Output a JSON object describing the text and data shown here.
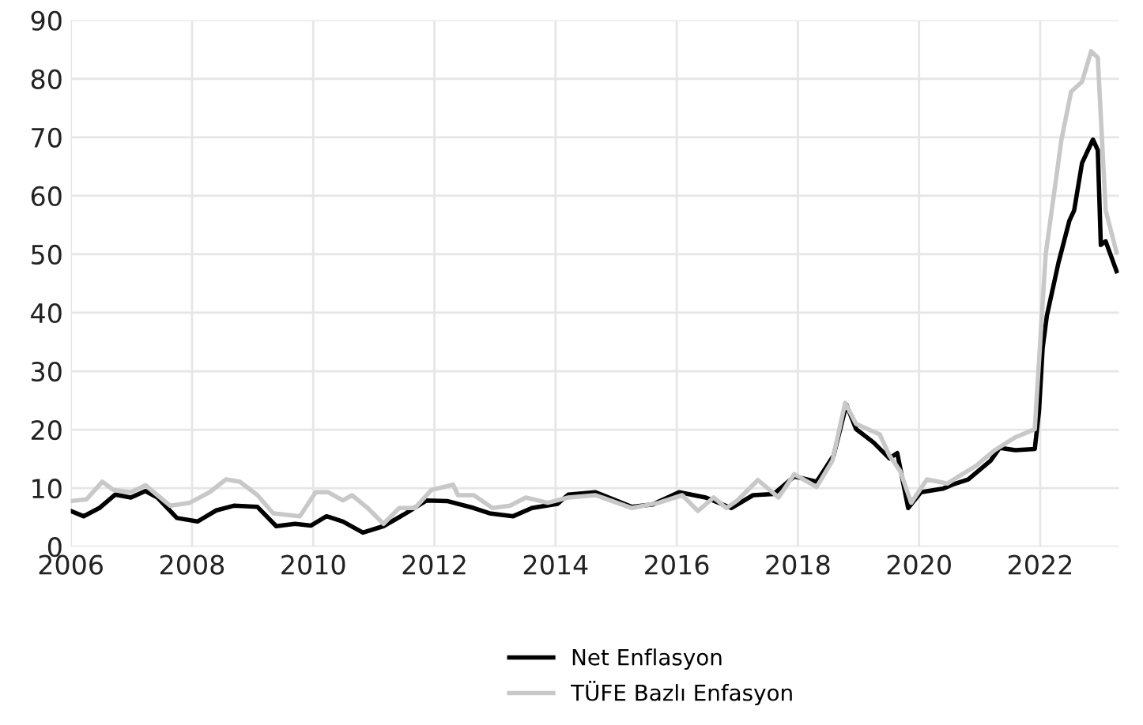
{
  "chart_data": {
    "type": "line",
    "xlim": [
      2006,
      2023.3
    ],
    "ylim": [
      0,
      90
    ],
    "xticks": [
      2006,
      2008,
      2010,
      2012,
      2014,
      2016,
      2018,
      2020,
      2022
    ],
    "yticks": [
      0,
      10,
      20,
      30,
      40,
      50,
      60,
      70,
      80,
      90
    ],
    "grid": true,
    "legend": "bottom",
    "line_style": "solid",
    "marker": "none",
    "series": [
      {
        "name": "Net Enflasyon",
        "color": "#000000",
        "x": [
          2006,
          2006.21,
          2006.47,
          2006.73,
          2006.99,
          2007.23,
          2007.43,
          2007.75,
          2008.09,
          2008.4,
          2008.69,
          2009.08,
          2009.39,
          2009.7,
          2009.96,
          2010.22,
          2010.49,
          2010.82,
          2011.16,
          2011.53,
          2011.87,
          2012.21,
          2012.65,
          2012.91,
          2013.3,
          2013.61,
          2014.03,
          2014.21,
          2014.66,
          2015.26,
          2015.6,
          2016.04,
          2016.48,
          2016.9,
          2017.26,
          2017.6,
          2017.94,
          2018.31,
          2018.59,
          2018.8,
          2018.96,
          2019.25,
          2019.51,
          2019.64,
          2019.82,
          2020.03,
          2020.39,
          2020.55,
          2020.81,
          2021.18,
          2021.33,
          2021.59,
          2021.91,
          2021.98,
          2022.04,
          2022.11,
          2022.3,
          2022.48,
          2022.56,
          2022.69,
          2022.87,
          2022.95,
          2023.0,
          2023.08,
          2023.26
        ],
        "values": [
          6.1,
          5.2,
          6.6,
          8.9,
          8.4,
          9.5,
          8.4,
          4.9,
          4.3,
          6.2,
          7.0,
          6.8,
          3.5,
          3.9,
          3.6,
          5.2,
          4.3,
          2.4,
          3.5,
          5.7,
          7.9,
          7.8,
          6.6,
          5.7,
          5.2,
          6.6,
          7.3,
          8.9,
          9.3,
          6.8,
          7.2,
          9.3,
          8.4,
          6.6,
          8.8,
          9.0,
          12.0,
          11.1,
          15.6,
          24.3,
          20.1,
          17.8,
          15.1,
          16.0,
          6.6,
          9.3,
          9.9,
          10.6,
          11.5,
          14.7,
          16.9,
          16.5,
          16.7,
          23.2,
          34,
          39.5,
          48.5,
          55.7,
          57.5,
          65.6,
          69.6,
          67.8,
          51.6,
          52.2,
          47.1
        ]
      },
      {
        "name": "TÜFE Bazlı Enfasyon",
        "color": "#c8c8c8",
        "x": [
          2006,
          2006.26,
          2006.52,
          2006.7,
          2006.99,
          2007.23,
          2007.43,
          2007.64,
          2007.96,
          2008.29,
          2008.56,
          2008.79,
          2009.08,
          2009.34,
          2009.78,
          2010.04,
          2010.25,
          2010.49,
          2010.64,
          2010.9,
          2011.16,
          2011.42,
          2011.68,
          2011.95,
          2012.31,
          2012.39,
          2012.65,
          2012.96,
          2013.25,
          2013.51,
          2013.87,
          2014.21,
          2014.66,
          2015.26,
          2015.7,
          2016.09,
          2016.35,
          2016.61,
          2016.82,
          2017.0,
          2017.34,
          2017.68,
          2017.94,
          2018.31,
          2018.57,
          2018.78,
          2018.96,
          2019.35,
          2019.51,
          2019.69,
          2019.87,
          2020.13,
          2020.47,
          2020.65,
          2020.94,
          2021.25,
          2021.59,
          2021.91,
          2022.09,
          2022.35,
          2022.51,
          2022.69,
          2022.84,
          2022.95,
          2023.08,
          2023.26
        ],
        "values": [
          7.8,
          8.1,
          11.1,
          9.7,
          9.3,
          10.5,
          8.8,
          7.0,
          7.5,
          9.3,
          11.5,
          11.1,
          8.8,
          5.7,
          5.2,
          9.3,
          9.3,
          7.9,
          8.8,
          6.6,
          3.9,
          6.6,
          6.6,
          9.7,
          10.6,
          8.8,
          8.8,
          6.6,
          7.0,
          8.4,
          7.5,
          8.4,
          8.8,
          6.6,
          7.5,
          8.8,
          6.1,
          8.4,
          6.6,
          7.9,
          11.4,
          8.4,
          12.4,
          10.2,
          14.7,
          24.6,
          21.0,
          19.2,
          15.6,
          12.9,
          7.5,
          11.5,
          10.8,
          12.0,
          13.8,
          16.5,
          18.7,
          20.1,
          50,
          69.6,
          77.8,
          79.5,
          84.7,
          83.6,
          57.5,
          50.3
        ]
      }
    ]
  }
}
